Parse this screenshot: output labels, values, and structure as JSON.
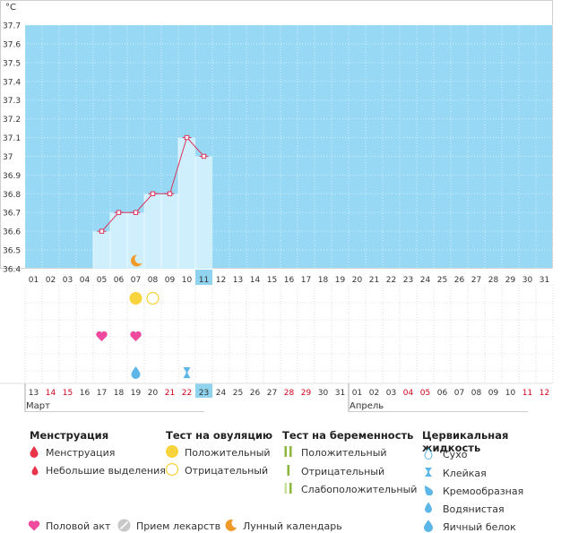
{
  "chart_data": {
    "type": "line",
    "ylabel": "°C",
    "y_ticks": [
      "37.7",
      "37.6",
      "37.5",
      "37.4",
      "37.3",
      "37.2",
      "37.1",
      "37",
      "36.9",
      "36.8",
      "36.7",
      "36.6",
      "36.5",
      "36.4"
    ],
    "ylim": [
      36.4,
      37.7
    ],
    "cycle_days": [
      "01",
      "02",
      "03",
      "04",
      "05",
      "06",
      "07",
      "08",
      "09",
      "10",
      "11",
      "12",
      "13",
      "14",
      "15",
      "16",
      "17",
      "18",
      "19",
      "20",
      "21",
      "22",
      "23",
      "24",
      "25",
      "26",
      "27",
      "28",
      "29",
      "30",
      "31"
    ],
    "series": [
      {
        "x": [
          "05",
          "06",
          "07",
          "08",
          "09",
          "10",
          "11"
        ],
        "values": [
          36.6,
          36.7,
          36.7,
          36.8,
          36.8,
          37.1,
          37.0
        ]
      }
    ],
    "current_day_index": 10,
    "date_labels": [
      "13",
      "14",
      "15",
      "16",
      "17",
      "18",
      "19",
      "20",
      "21",
      "22",
      "23",
      "24",
      "25",
      "26",
      "27",
      "28",
      "29",
      "30",
      "31",
      "01",
      "02",
      "03",
      "04",
      "05",
      "06",
      "07",
      "08",
      "09",
      "10",
      "11",
      "12"
    ],
    "date_weekend": [
      false,
      true,
      true,
      false,
      false,
      false,
      false,
      false,
      true,
      true,
      false,
      false,
      false,
      false,
      false,
      true,
      true,
      false,
      false,
      false,
      false,
      false,
      true,
      true,
      false,
      false,
      false,
      false,
      false,
      true,
      true
    ],
    "months": [
      {
        "label": "Март",
        "start_index": 0
      },
      {
        "label": "Апрель",
        "start_index": 19
      }
    ],
    "markers": {
      "moon": [
        6
      ],
      "ovulation_positive": [
        6
      ],
      "ovulation_negative": [
        7
      ],
      "intercourse": [
        4,
        6
      ],
      "fluid_egg_white": [
        6
      ],
      "fluid_sticky": [
        9
      ]
    }
  },
  "legend": {
    "menstruation": {
      "title": "Менструация",
      "items": [
        "Менструация",
        "Небольшие выделения"
      ]
    },
    "ovulation_test": {
      "title": "Тест на овуляцию",
      "items": [
        "Положительный",
        "Отрицательный"
      ]
    },
    "pregnancy_test": {
      "title": "Тест на беременность",
      "items": [
        "Положительный",
        "Отрицательный",
        "Слабоположительный"
      ]
    },
    "cervical_fluid": {
      "title": "Цервикальная жидкость",
      "items": [
        "Сухо",
        "Клейкая",
        "Кремообразная",
        "Водянистая",
        "Яичный белок"
      ]
    },
    "bottom": [
      "Половой акт",
      "Прием лекарств",
      "Лунный календарь"
    ]
  },
  "colors": {
    "plot_bg": "#97d9f4",
    "bar_fill": "#cfeffc",
    "line": "#d9335a",
    "menstruation": "#e8334a",
    "ovulation": "#f7d33c",
    "pregnancy": "#8ab63a",
    "fluid": "#5db6e8",
    "heart": "#ef4a9e",
    "moon": "#f19a2a",
    "weekend": "#d0021b",
    "highlight": "#8fd3ef"
  }
}
